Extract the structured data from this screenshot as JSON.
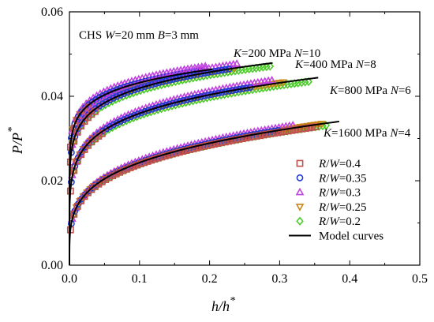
{
  "chart_data": {
    "type": "scatter",
    "title": "",
    "xlabel": "h/h*",
    "ylabel": "P/P*",
    "xlim": [
      0,
      0.5
    ],
    "ylim": [
      0,
      0.06
    ],
    "xticks": [
      "0.0",
      "0.1",
      "0.2",
      "0.3",
      "0.4",
      "0.5"
    ],
    "yticks": [
      "0.00",
      "0.02",
      "0.04",
      "0.06"
    ],
    "inset_text": "CHS W=20 mm B=3 mm",
    "legend_position": "bottom-right",
    "series": [
      {
        "name": "R/W=0.4",
        "marker": "square",
        "color": "#c0504d"
      },
      {
        "name": "R/W=0.35",
        "marker": "circle",
        "color": "#1f3bd1"
      },
      {
        "name": "R/W=0.3",
        "marker": "triangle-up",
        "color": "#c042e0"
      },
      {
        "name": "R/W=0.25",
        "marker": "triangle-down",
        "color": "#c8861a"
      },
      {
        "name": "R/W=0.2",
        "marker": "diamond",
        "color": "#4ccc2a"
      }
    ],
    "model_label": "Model curves",
    "groups": [
      {
        "label": "K=200 MPa N=10",
        "model_curve": {
          "a": 0.0544,
          "p": 0.1,
          "xmax": 0.204
        },
        "xmax": [
          0.03,
          0.19,
          0.195,
          0.18,
          0.17
        ]
      },
      {
        "label": "K=400 MPa N=8",
        "model_curve": {
          "a": 0.0559,
          "p": 0.125,
          "xmax": 0.29
        },
        "xmax": [
          0.04,
          0.23,
          0.24,
          0.24,
          0.29
        ]
      },
      {
        "label": "K=800 MPa N=6",
        "model_curve": {
          "a": 0.0528,
          "p": 0.167,
          "xmax": 0.355
        },
        "xmax": [
          0.05,
          0.26,
          0.29,
          0.31,
          0.345
        ]
      },
      {
        "label": "K=1600 MPa N=4",
        "model_curve": {
          "a": 0.0432,
          "p": 0.25,
          "xmax": 0.385
        },
        "xmax": [
          0.355,
          0.3,
          0.32,
          0.365,
          0.37
        ]
      }
    ]
  }
}
